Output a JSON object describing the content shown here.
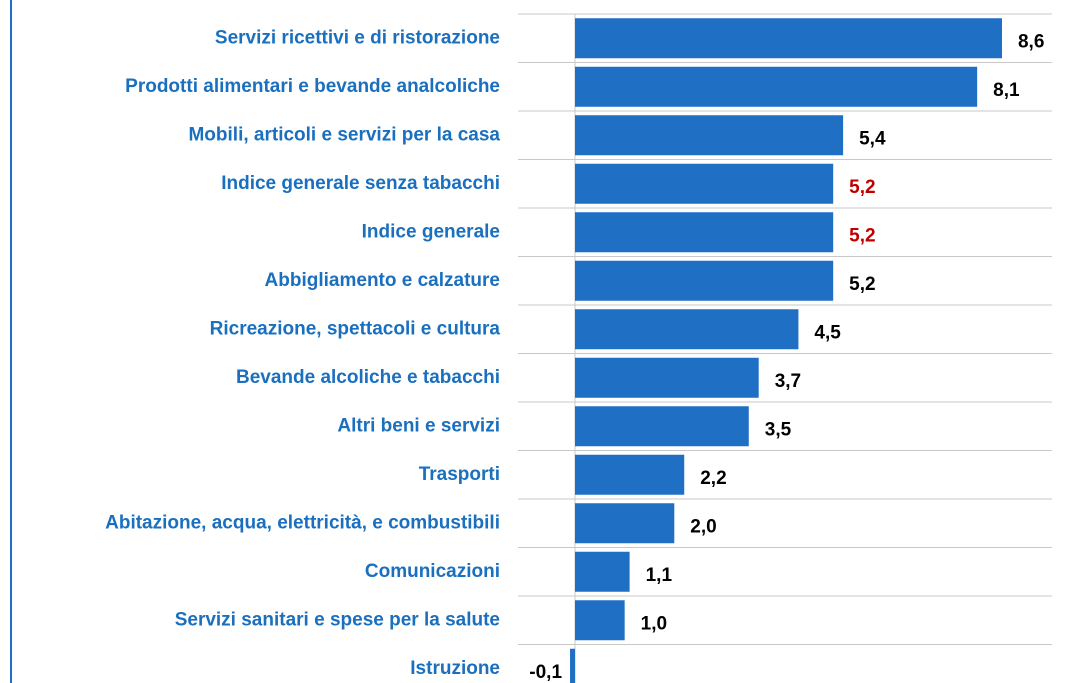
{
  "chart_data": {
    "type": "hbar",
    "categories": [
      "Servizi ricettivi e di ristorazione",
      "Prodotti alimentari e bevande analcoliche",
      "Mobili, articoli e servizi per la casa",
      "Indice generale senza tabacchi",
      "Indice generale",
      "Abbigliamento e calzature",
      "Ricreazione, spettacoli e cultura",
      "Bevande alcoliche e tabacchi",
      "Altri beni e servizi",
      "Trasporti",
      "Abitazione, acqua, elettricità, e combustibili",
      "Comunicazioni",
      "Servizi sanitari e spese per la salute",
      "Istruzione"
    ],
    "values": [
      8.6,
      8.1,
      5.4,
      5.2,
      5.2,
      5.2,
      4.5,
      3.7,
      3.5,
      2.2,
      2.0,
      1.1,
      1.0,
      -0.1
    ],
    "value_labels": [
      "8,6",
      "8,1",
      "5,4",
      "5,2",
      "5,2",
      "5,2",
      "4,5",
      "3,7",
      "3,5",
      "2,2",
      "2,0",
      "1,1",
      "1,0",
      "-0,1"
    ],
    "value_label_colors": [
      "#000000",
      "#000000",
      "#000000",
      "#c00000",
      "#c00000",
      "#000000",
      "#000000",
      "#000000",
      "#000000",
      "#000000",
      "#000000",
      "#000000",
      "#000000",
      "#000000"
    ],
    "color": "#1f6fc5",
    "category_color": "#1a6fbf"
  }
}
